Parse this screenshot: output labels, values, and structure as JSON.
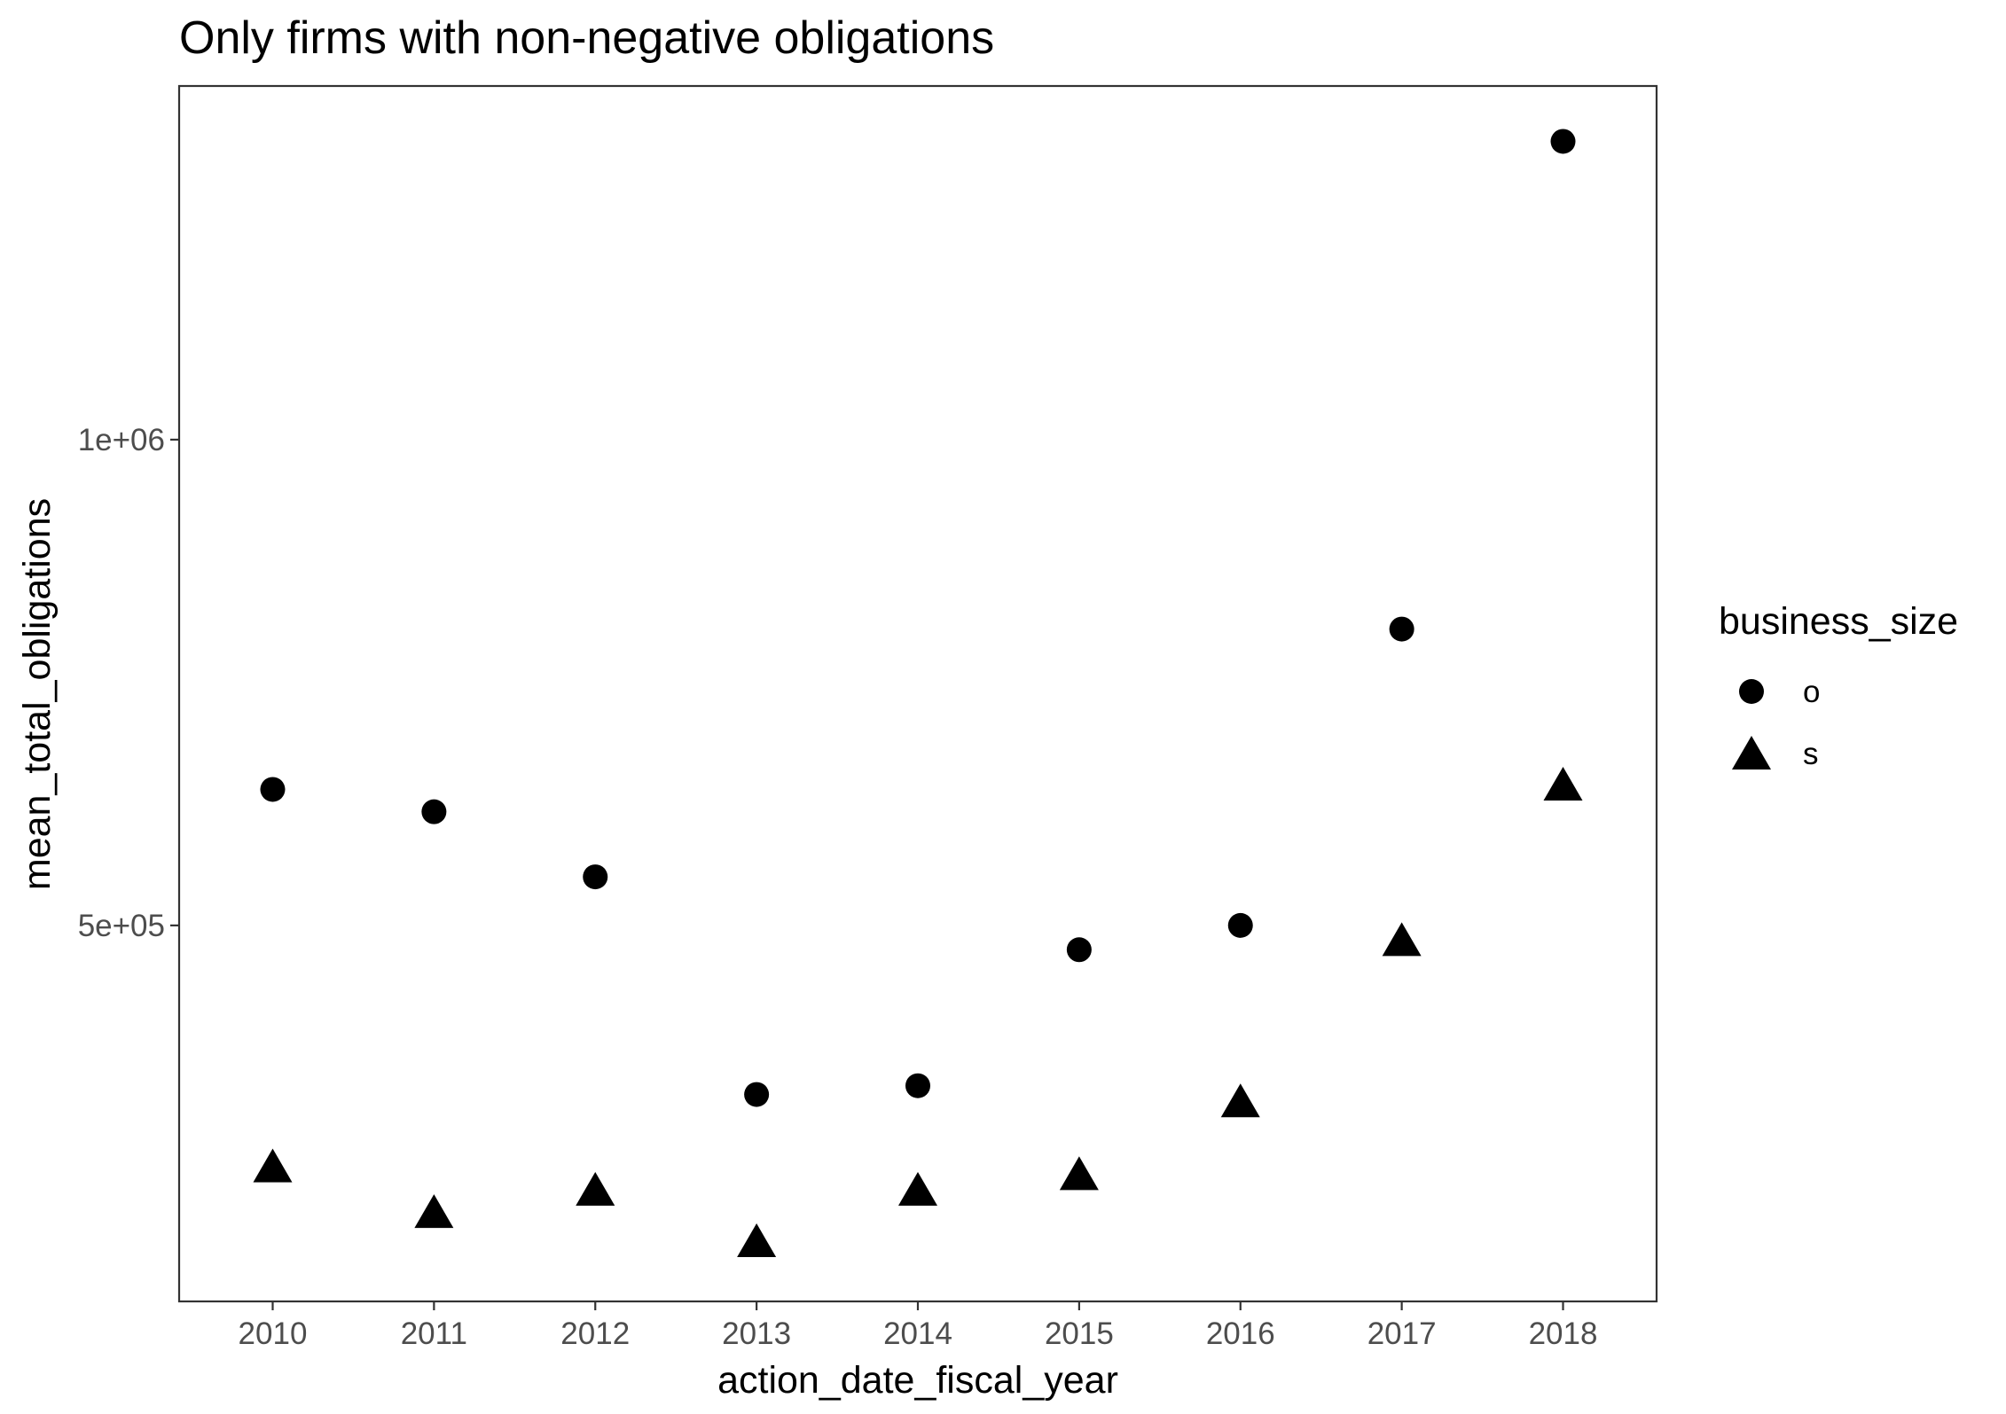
{
  "chart_data": {
    "type": "scatter",
    "title": "Only firms with non-negative obligations",
    "xlabel": "action_date_fiscal_year",
    "ylabel": "mean_total_obligations",
    "x": [
      2010,
      2011,
      2012,
      2013,
      2014,
      2015,
      2016,
      2017,
      2018
    ],
    "x_tick_labels": [
      "2010",
      "2011",
      "2012",
      "2013",
      "2014",
      "2015",
      "2016",
      "2017",
      "2018"
    ],
    "y_ticks": [
      500000,
      1000000
    ],
    "y_tick_labels": [
      "5e+05",
      "1e+06"
    ],
    "xlim": [
      2009.42,
      2018.58
    ],
    "ylim": [
      113000,
      1364000
    ],
    "grid": false,
    "legend": {
      "title": "business_size",
      "position": "right"
    },
    "series": [
      {
        "name": "o",
        "shape": "circle",
        "color": "#000000",
        "values": [
          640000,
          617000,
          550000,
          326000,
          335000,
          475000,
          500000,
          805000,
          1307000
        ]
      },
      {
        "name": "s",
        "shape": "triangle",
        "color": "#000000",
        "values": [
          252000,
          205000,
          228000,
          175000,
          228000,
          244000,
          319000,
          485000,
          645000
        ]
      }
    ]
  }
}
